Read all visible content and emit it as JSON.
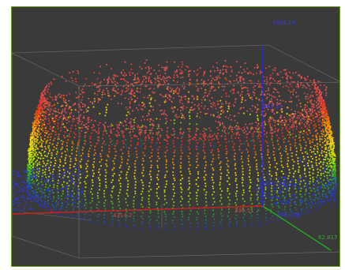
{
  "viewport": {
    "background": "#3a3a3a",
    "border_color": "#6d9a2a"
  },
  "axis_labels": {
    "top_z": "1043.16",
    "mid_z_upper": "943.25",
    "mid_z_lower": "543.09",
    "x_axis": "4314.2",
    "origin": "336.51",
    "y_axis": "458.258",
    "y_axis_end": "62.817"
  },
  "colors": {
    "x_axis": "#d42020",
    "y_axis": "#22b022",
    "z_axis": "#2a2ad8",
    "box": "#8a8a8a",
    "label_blue": "#3b3bd8",
    "label_red": "#c85050",
    "label_green": "#3aa83a",
    "gradient": [
      "#2233cc",
      "#22aa22",
      "#b8e000",
      "#ffdd00",
      "#ff9000",
      "#e83020",
      "#e05050"
    ]
  }
}
